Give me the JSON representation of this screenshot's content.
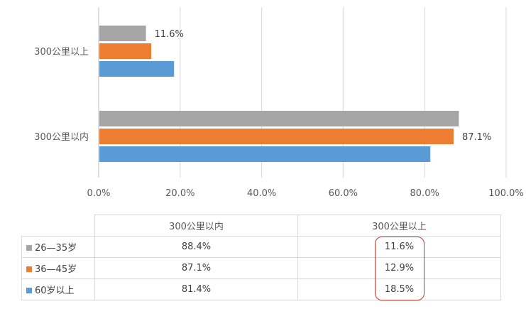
{
  "chart_data": {
    "type": "bar",
    "orientation": "horizontal",
    "categories": [
      "300公里以上",
      "300公里以内"
    ],
    "series": [
      {
        "name": "26—35岁",
        "color": "#a5a5a5",
        "values": [
          11.6,
          88.4
        ]
      },
      {
        "name": "36—45岁",
        "color": "#ed7d31",
        "values": [
          12.9,
          87.1
        ]
      },
      {
        "name": "60岁以上",
        "color": "#5b9bd5",
        "values": [
          18.5,
          81.4
        ]
      }
    ],
    "data_labels": [
      {
        "series": 0,
        "category": 0,
        "text": "11.6%"
      },
      {
        "series": 1,
        "category": 1,
        "text": "87.1%"
      }
    ],
    "x_ticks": [
      "0.0%",
      "20.0%",
      "40.0%",
      "60.0%",
      "80.0%",
      "100.0%"
    ],
    "xlim": [
      0,
      100
    ],
    "grid": true,
    "legend": "table-below"
  },
  "table": {
    "columns": [
      "300公里以内",
      "300公里以上"
    ],
    "rows": [
      {
        "label": "26—35岁",
        "color": "#a5a5a5",
        "values": [
          "88.4%",
          "11.6%"
        ]
      },
      {
        "label": "36—45岁",
        "color": "#ed7d31",
        "values": [
          "87.1%",
          "12.9%"
        ]
      },
      {
        "label": "60岁以上",
        "color": "#5b9bd5",
        "values": [
          "81.4%",
          "18.5%"
        ]
      }
    ]
  }
}
